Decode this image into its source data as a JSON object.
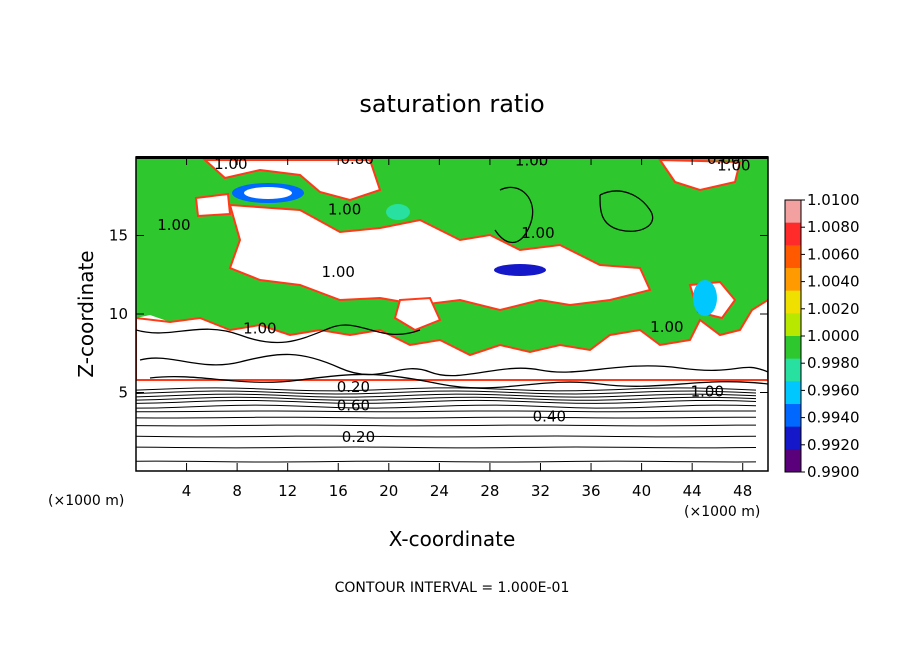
{
  "chart_data": {
    "type": "heatmap",
    "title": "saturation ratio",
    "xlabel": "X-coordinate",
    "ylabel": "Z-coordinate",
    "x_unit": "(×1000 m)",
    "y_unit": "(×1000 m)",
    "xlim": [
      0,
      50
    ],
    "ylim": [
      0,
      20
    ],
    "x_ticks": [
      4,
      8,
      12,
      16,
      20,
      24,
      28,
      32,
      36,
      40,
      44,
      48
    ],
    "y_ticks": [
      5,
      10,
      15
    ],
    "colorbar": {
      "levels": [
        "1.0100",
        "1.0080",
        "1.0060",
        "1.0040",
        "1.0020",
        "1.0000",
        "0.9980",
        "0.9960",
        "0.9940",
        "0.9920",
        "0.9900"
      ],
      "colors": [
        "#f2a0a0",
        "#ff2a2a",
        "#ff5a00",
        "#ff9a00",
        "#f0e000",
        "#b8e800",
        "#2ec82e",
        "#28e0a0",
        "#00c8ff",
        "#0068ff",
        "#1418c8",
        "#5a007a"
      ]
    },
    "contour_labels": [
      {
        "text": "1.00",
        "x": 7.5,
        "z": 19.5
      },
      {
        "text": "0.80",
        "x": 17.5,
        "z": 19.8
      },
      {
        "text": "1.00",
        "x": 31.3,
        "z": 19.7
      },
      {
        "text": "0.60",
        "x": 46.5,
        "z": 19.8
      },
      {
        "text": "1.00",
        "x": 47.3,
        "z": 19.4
      },
      {
        "text": "1.00",
        "x": 16.5,
        "z": 16.6
      },
      {
        "text": "1.00",
        "x": 3.0,
        "z": 15.6
      },
      {
        "text": "1.00",
        "x": 31.8,
        "z": 15.1
      },
      {
        "text": "1.00",
        "x": 16.0,
        "z": 12.6
      },
      {
        "text": "1.00",
        "x": 42.0,
        "z": 9.1
      },
      {
        "text": "1.00",
        "x": 9.8,
        "z": 9.0
      },
      {
        "text": "0.20",
        "x": 17.2,
        "z": 5.3
      },
      {
        "text": "0.60",
        "x": 17.2,
        "z": 4.1
      },
      {
        "text": "1.00",
        "x": 45.2,
        "z": 5.0
      },
      {
        "text": "0.40",
        "x": 32.7,
        "z": 3.4
      },
      {
        "text": "0.20",
        "x": 17.6,
        "z": 2.1
      }
    ],
    "footer": "CONTOUR INTERVAL = 1.000E-01"
  }
}
